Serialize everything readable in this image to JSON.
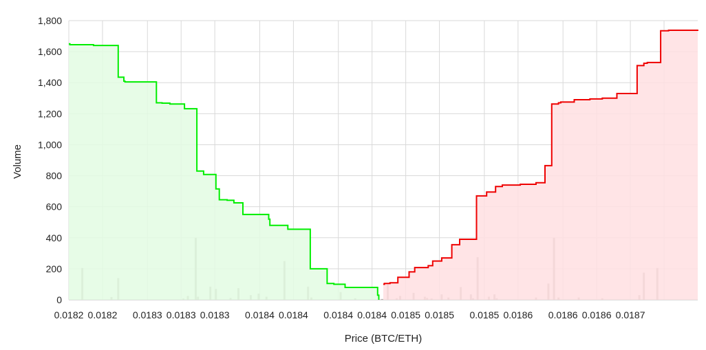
{
  "chart_data": {
    "type": "area",
    "xlabel": "Price (BTC/ETH)",
    "ylabel": "Volume",
    "ylim": [
      0,
      1800
    ],
    "xlim": [
      0.0182,
      0.01876
    ],
    "grid": true,
    "legend": "none",
    "y_ticks": [
      0,
      200,
      400,
      600,
      800,
      1000,
      1200,
      1400,
      1600,
      1800
    ],
    "y_tick_labels": [
      "0",
      "200",
      "400",
      "600",
      "800",
      "1,000",
      "1,200",
      "1,400",
      "1,600",
      "1,800"
    ],
    "x_ticks": [
      0.0182,
      0.01823,
      0.01827,
      0.0183,
      0.01833,
      0.01837,
      0.0184,
      0.01844,
      0.01847,
      0.0185,
      0.01853,
      0.01857,
      0.0186,
      0.01864,
      0.01867,
      0.0187,
      0.01873
    ],
    "x_tick_labels": [
      "0.0182",
      "0.0182",
      "0.0183",
      "0.0183",
      "0.0183",
      "0.0184",
      "0.0184",
      "0.0184",
      "0.0184",
      "0.0185",
      "0.0185",
      "0.0185",
      "0.0186",
      "0.0186",
      "0.0186",
      "0.0187",
      ""
    ],
    "colors": {
      "bids_line": "#00ee00",
      "bids_fill": "#e3fce3",
      "asks_line": "#ee0000",
      "asks_fill": "#ffdfe2",
      "volume_bars": "#b5aea8"
    },
    "series": [
      {
        "role": "bids",
        "x": [
          0.0182,
          0.018201,
          0.018222,
          0.018244,
          0.018249,
          0.01825,
          0.018278,
          0.018283,
          0.01829,
          0.01829,
          0.018303,
          0.018303,
          0.018304,
          0.018314,
          0.018314,
          0.01832,
          0.018325,
          0.018331,
          0.018334,
          0.018341,
          0.018347,
          0.018355,
          0.018378,
          0.018379,
          0.018395,
          0.0184,
          0.018415,
          0.01843,
          0.018436,
          0.018446,
          0.018475,
          0.018476
        ],
        "values": [
          1650,
          1645,
          1640,
          1435,
          1410,
          1405,
          1270,
          1268,
          1265,
          1262,
          1255,
          1232,
          1232,
          1230,
          830,
          808,
          808,
          715,
          645,
          642,
          625,
          550,
          520,
          480,
          455,
          455,
          200,
          105,
          100,
          80,
          30,
          0
        ]
      },
      {
        "role": "asks",
        "x": [
          0.01848,
          0.018481,
          0.018486,
          0.018493,
          0.018503,
          0.018508,
          0.01852,
          0.018524,
          0.018532,
          0.018541,
          0.018548,
          0.018563,
          0.018572,
          0.01858,
          0.018586,
          0.018602,
          0.018616,
          0.018624,
          0.01863,
          0.018636,
          0.018638,
          0.01865,
          0.018664,
          0.018675,
          0.018688,
          0.018706,
          0.018712,
          0.018715,
          0.018727,
          0.018734,
          0.01876
        ],
        "values": [
          100,
          105,
          110,
          145,
          180,
          208,
          220,
          250,
          270,
          355,
          390,
          670,
          695,
          730,
          740,
          745,
          755,
          865,
          1262,
          1270,
          1275,
          1290,
          1295,
          1300,
          1330,
          1510,
          1525,
          1530,
          1735,
          1738,
          1742
        ]
      }
    ],
    "volume_bars": {
      "x": [
        0.018212,
        0.018238,
        0.018244,
        0.018302,
        0.018306,
        0.018313,
        0.018315,
        0.018326,
        0.018331,
        0.018344,
        0.018351,
        0.018362,
        0.018369,
        0.018376,
        0.018392,
        0.018413,
        0.018416,
        0.018442,
        0.018455,
        0.018479,
        0.018484,
        0.018492,
        0.018495,
        0.018507,
        0.018517,
        0.018519,
        0.018523,
        0.018532,
        0.018538,
        0.018549,
        0.018558,
        0.01856,
        0.018564,
        0.018574,
        0.018579,
        0.018581,
        0.018616,
        0.018627,
        0.018632,
        0.018636,
        0.018654,
        0.018675,
        0.018708,
        0.018712,
        0.018724
      ],
      "values": [
        205,
        18,
        140,
        8,
        25,
        400,
        20,
        85,
        70,
        12,
        75,
        30,
        40,
        20,
        250,
        85,
        15,
        50,
        10,
        5,
        100,
        10,
        25,
        45,
        20,
        12,
        8,
        35,
        15,
        82,
        35,
        10,
        275,
        20,
        35,
        10,
        15,
        105,
        400,
        15,
        15,
        10,
        30,
        175,
        205
      ]
    }
  }
}
